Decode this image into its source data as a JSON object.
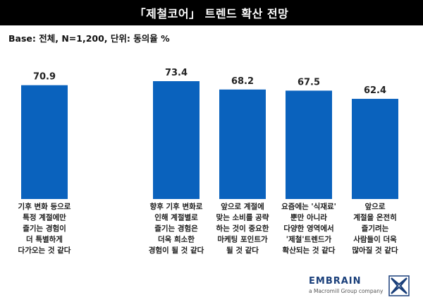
{
  "header": {
    "title": "「제철코어」 트렌드 확산 전망",
    "base": "Base: 전체, N=1,200, 단위: 동의율 %"
  },
  "logo": {
    "name": "EMBRAIN",
    "tagline": "a Macromill Group company"
  },
  "colors": {
    "bar": "#0a62bd",
    "title_bg": "#000000"
  },
  "chart_data": {
    "type": "bar",
    "title": "「제철코어」 트렌드 확산 전망",
    "ylim": [
      0,
      100
    ],
    "grid": false,
    "categories": [
      [
        "기후 변화 등으로",
        "특정 계절에만",
        "즐기는 경험이",
        "더 특별하게",
        "다가오는 것 같다"
      ],
      [
        "향후 기후 변화로",
        "인해 계절별로",
        "즐기는 경험은",
        "더욱 희소한",
        "경험이 될 것 같다"
      ],
      [
        "앞으로 계절에",
        "맞는 소비를 공략",
        "하는 것이 중요한",
        "마케팅 포인트가",
        "될 것 같다"
      ],
      [
        "요즘에는 '식재료'",
        "뿐만 아니라",
        "다양한 영역에서",
        "'제철'트렌드가",
        "확산되는 것 같다"
      ],
      [
        "앞으로",
        "계절을 온전히",
        "즐기려는",
        "사람들이 더욱",
        "많아질 것 같다"
      ]
    ],
    "values": [
      70.9,
      73.4,
      68.2,
      67.5,
      62.4
    ],
    "value_labels": [
      "70.9",
      "73.4",
      "68.2",
      "67.5",
      "62.4"
    ]
  }
}
